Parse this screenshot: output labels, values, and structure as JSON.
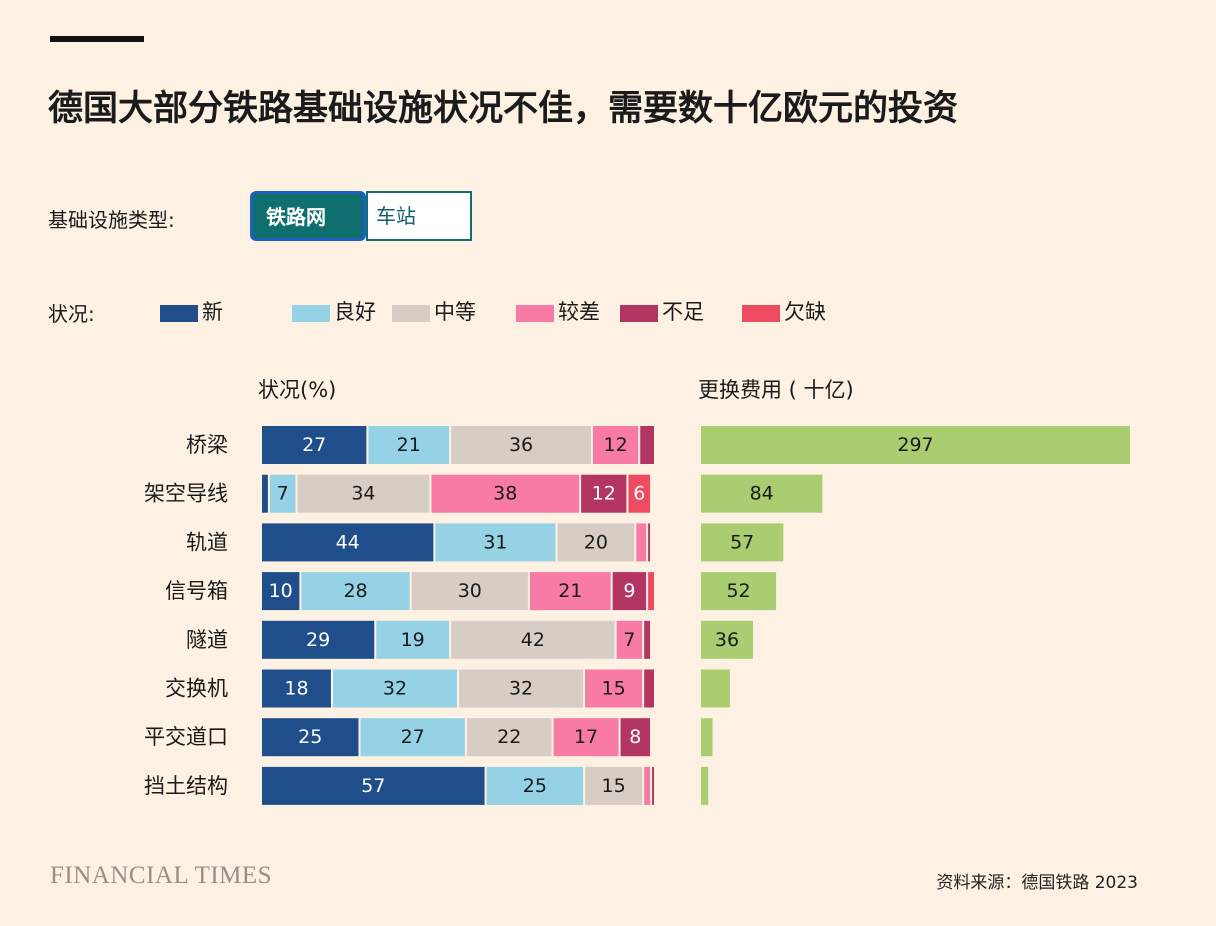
{
  "title": "德国大部分铁路基础设施状况不佳，需要数十亿欧元的投资",
  "filter": {
    "label": "基础设施类型:",
    "options": [
      "铁路网",
      "车站"
    ],
    "selected": "铁路网"
  },
  "legend": {
    "label": "状况:",
    "items": [
      {
        "name": "新",
        "color": "#1f4e8b"
      },
      {
        "name": "良好",
        "color": "#96d2e6"
      },
      {
        "name": "中等",
        "color": "#d8cdc4"
      },
      {
        "name": "较差",
        "color": "#f77ba5"
      },
      {
        "name": "不足",
        "color": "#b23562"
      },
      {
        "name": "欠缺",
        "color": "#ee4b60"
      }
    ]
  },
  "chart_data": [
    {
      "type": "bar",
      "orientation": "horizontal",
      "stacked": true,
      "title": "状况(%)",
      "categories": [
        "桥梁",
        "架空导线",
        "轨道",
        "信号箱",
        "隧道",
        "交换机",
        "平交道口",
        "挡土结构"
      ],
      "series": [
        {
          "name": "新",
          "values": [
            27,
            2,
            44,
            10,
            29,
            18,
            25,
            57
          ]
        },
        {
          "name": "良好",
          "values": [
            21,
            7,
            31,
            28,
            19,
            32,
            27,
            25
          ]
        },
        {
          "name": "中等",
          "values": [
            36,
            34,
            20,
            30,
            42,
            32,
            22,
            15
          ]
        },
        {
          "name": "较差",
          "values": [
            12,
            38,
            3,
            21,
            7,
            15,
            17,
            2
          ]
        },
        {
          "name": "不足",
          "values": [
            4,
            12,
            1,
            9,
            2,
            3,
            8,
            1
          ]
        },
        {
          "name": "欠缺",
          "values": [
            0,
            6,
            0,
            2,
            0,
            0,
            0,
            0
          ]
        }
      ],
      "xlim": [
        0,
        100
      ]
    },
    {
      "type": "bar",
      "orientation": "horizontal",
      "title": "更换费用 ( 十亿)",
      "categories": [
        "桥梁",
        "架空导线",
        "轨道",
        "信号箱",
        "隧道",
        "交换机",
        "平交道口",
        "挡土结构"
      ],
      "values": [
        297,
        84,
        57,
        52,
        36,
        20,
        8,
        5
      ],
      "value_labels": [
        "297",
        "84",
        "57",
        "52",
        "36",
        "",
        "",
        ""
      ],
      "color": "#abcd72"
    }
  ],
  "footer": {
    "brand": "FINANCIAL TIMES",
    "source": "资料来源：德国铁路 2023"
  }
}
